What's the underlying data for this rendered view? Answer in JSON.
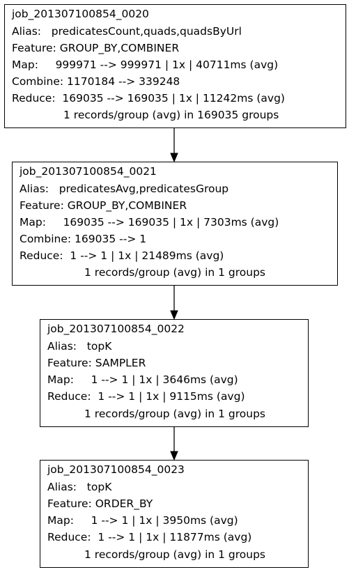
{
  "jobs": [
    {
      "id": "job_201307100854_0020",
      "alias": "Alias:   predicatesCount,quads,quadsByUrl",
      "feature": "Feature: GROUP_BY,COMBINER",
      "map": "Map:     999971 --> 999971 | 1x | 40711ms (avg)",
      "combine": "Combine: 1170184 --> 339248",
      "reduce": "Reduce:  169035 --> 169035 | 1x | 11242ms (avg)",
      "groups": "1 records/group (avg) in 169035 groups"
    },
    {
      "id": "job_201307100854_0021",
      "alias": "Alias:   predicatesAvg,predicatesGroup",
      "feature": "Feature: GROUP_BY,COMBINER",
      "map": "Map:     169035 --> 169035 | 1x | 7303ms (avg)",
      "combine": "Combine: 169035 --> 1",
      "reduce": "Reduce:  1 --> 1 | 1x | 21489ms (avg)",
      "groups": "1 records/group (avg) in 1 groups"
    },
    {
      "id": "job_201307100854_0022",
      "alias": "Alias:   topK",
      "feature": "Feature: SAMPLER",
      "map": "Map:     1 --> 1 | 1x | 3646ms (avg)",
      "reduce": "Reduce:  1 --> 1 | 1x | 9115ms (avg)",
      "groups": "1 records/group (avg) in 1 groups"
    },
    {
      "id": "job_201307100854_0023",
      "alias": "Alias:   topK",
      "feature": "Feature: ORDER_BY",
      "map": "Map:     1 --> 1 | 1x | 3950ms (avg)",
      "reduce": "Reduce:  1 --> 1 | 1x | 11877ms (avg)",
      "groups": "1 records/group (avg) in 1 groups"
    }
  ],
  "edges": [
    {
      "from": "job_201307100854_0020",
      "to": "job_201307100854_0021"
    },
    {
      "from": "job_201307100854_0021",
      "to": "job_201307100854_0022"
    },
    {
      "from": "job_201307100854_0022",
      "to": "job_201307100854_0023"
    }
  ]
}
